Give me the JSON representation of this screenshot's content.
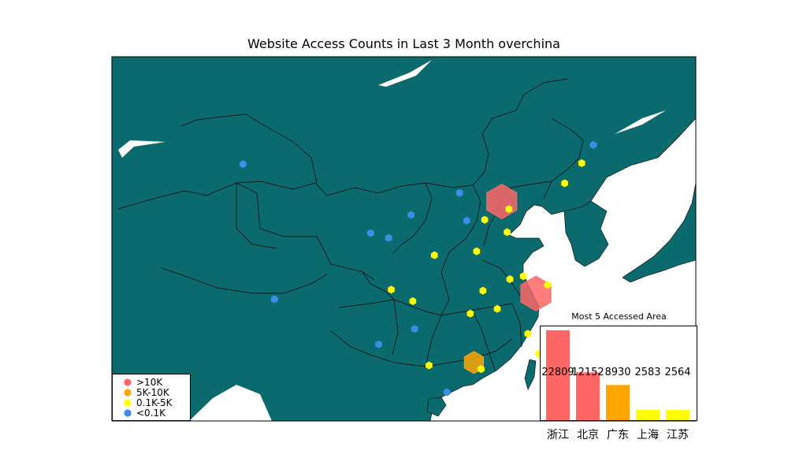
{
  "title": "Website Access Counts in Last 3 Month overchina",
  "colors": {
    "ocean": "#ffffff",
    "land": "#0a6a6d",
    "gt10k": "#ff6666",
    "k5_10": "#ffa500",
    "k01_5": "#ffff00",
    "lt01k": "#3a8ee6"
  },
  "legend": [
    {
      "label": ">10K",
      "color": "#ff6666"
    },
    {
      "label": "5K-10K",
      "color": "#ffa500"
    },
    {
      "label": "0.1K-5K",
      "color": "#ffff00"
    },
    {
      "label": "<0.1K",
      "color": "#3a8ee6"
    }
  ],
  "chart_data": [
    {
      "type": "scatter",
      "title": "Website Access Counts in Last 3 Month overchina",
      "xlim": [
        73,
        138
      ],
      "ylim": [
        17,
        55
      ],
      "points": [
        {
          "lon": 120.2,
          "lat": 30.3,
          "cat": "gt10k"
        },
        {
          "lon": 116.4,
          "lat": 39.9,
          "cat": "gt10k"
        },
        {
          "lon": 113.3,
          "lat": 23.1,
          "cat": "k5_10"
        },
        {
          "lon": 121.5,
          "lat": 31.2,
          "cat": "k01_5"
        },
        {
          "lon": 118.8,
          "lat": 32.1,
          "cat": "k01_5"
        },
        {
          "lon": 117.2,
          "lat": 39.1,
          "cat": "k01_5"
        },
        {
          "lon": 117.0,
          "lat": 36.7,
          "cat": "k01_5"
        },
        {
          "lon": 114.5,
          "lat": 38.0,
          "cat": "k01_5"
        },
        {
          "lon": 113.6,
          "lat": 34.7,
          "cat": "k01_5"
        },
        {
          "lon": 112.9,
          "lat": 28.2,
          "cat": "k01_5"
        },
        {
          "lon": 114.3,
          "lat": 30.6,
          "cat": "k01_5"
        },
        {
          "lon": 115.9,
          "lat": 28.7,
          "cat": "k01_5"
        },
        {
          "lon": 117.3,
          "lat": 31.8,
          "cat": "k01_5"
        },
        {
          "lon": 119.3,
          "lat": 26.1,
          "cat": "k01_5"
        },
        {
          "lon": 123.4,
          "lat": 41.8,
          "cat": "k01_5"
        },
        {
          "lon": 125.3,
          "lat": 43.9,
          "cat": "k01_5"
        },
        {
          "lon": 108.9,
          "lat": 34.3,
          "cat": "k01_5"
        },
        {
          "lon": 104.1,
          "lat": 30.7,
          "cat": "k01_5"
        },
        {
          "lon": 106.5,
          "lat": 29.5,
          "cat": "k01_5"
        },
        {
          "lon": 108.3,
          "lat": 22.8,
          "cat": "k01_5"
        },
        {
          "lon": 114.1,
          "lat": 22.4,
          "cat": "k01_5"
        },
        {
          "lon": 120.5,
          "lat": 24.0,
          "cat": "k01_5"
        },
        {
          "lon": 126.6,
          "lat": 45.8,
          "cat": "lt01k"
        },
        {
          "lon": 87.6,
          "lat": 43.8,
          "cat": "lt01k"
        },
        {
          "lon": 91.1,
          "lat": 29.7,
          "cat": "lt01k"
        },
        {
          "lon": 101.8,
          "lat": 36.6,
          "cat": "lt01k"
        },
        {
          "lon": 103.8,
          "lat": 36.1,
          "cat": "lt01k"
        },
        {
          "lon": 106.3,
          "lat": 38.5,
          "cat": "lt01k"
        },
        {
          "lon": 111.7,
          "lat": 40.8,
          "cat": "lt01k"
        },
        {
          "lon": 112.5,
          "lat": 37.9,
          "cat": "lt01k"
        },
        {
          "lon": 106.7,
          "lat": 26.6,
          "cat": "lt01k"
        },
        {
          "lon": 102.7,
          "lat": 25.0,
          "cat": "lt01k"
        },
        {
          "lon": 110.3,
          "lat": 20.0,
          "cat": "lt01k"
        }
      ]
    },
    {
      "type": "bar",
      "title": "Most 5 Accessed Area",
      "categories": [
        "浙江",
        "北京",
        "广东",
        "上海",
        "江苏"
      ],
      "values": [
        22809,
        12152,
        8930,
        2583,
        2564
      ],
      "colors": [
        "#ff6666",
        "#ff6666",
        "#ffa500",
        "#ffff00",
        "#ffff00"
      ],
      "ylim": [
        0,
        24000
      ]
    }
  ]
}
